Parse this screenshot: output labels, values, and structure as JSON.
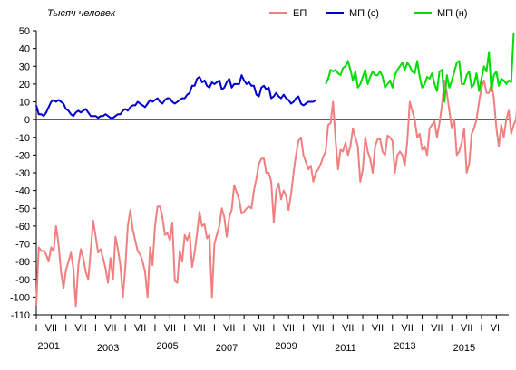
{
  "chart_data": {
    "type": "line",
    "unit_label": "Тысяч человек",
    "ylim": [
      -110,
      50
    ],
    "yticks": [
      50,
      40,
      30,
      20,
      10,
      0,
      -10,
      -20,
      -30,
      -40,
      -50,
      -60,
      -70,
      -80,
      -90,
      -100,
      -110
    ],
    "x_start": "2001-01",
    "x_end": "2016-12",
    "month_tick_labels": [
      "I",
      "VII"
    ],
    "year_labels": [
      "2001",
      "2003",
      "2005",
      "2007",
      "2009",
      "2011",
      "2013",
      "2015"
    ],
    "series": [
      {
        "name": "ЕП",
        "color": "#f08080",
        "start": "2001-01",
        "values": [
          -105,
          -72,
          -74,
          -74,
          -76,
          -80,
          -72,
          -74,
          -60,
          -70,
          -86,
          -95,
          -85,
          -80,
          -75,
          -84,
          -105,
          -82,
          -73,
          -78,
          -86,
          -90,
          -74,
          -57,
          -66,
          -75,
          -73,
          -78,
          -84,
          -92,
          -78,
          -90,
          -66,
          -73,
          -82,
          -100,
          -83,
          -60,
          -51,
          -62,
          -68,
          -74,
          -76,
          -80,
          -86,
          -100,
          -72,
          -82,
          -60,
          -49,
          -49,
          -55,
          -65,
          -64,
          -68,
          -58,
          -91,
          -92,
          -74,
          -80,
          -65,
          -68,
          -64,
          -83,
          -75,
          -64,
          -52,
          -60,
          -59,
          -67,
          -65,
          -100,
          -70,
          -65,
          -60,
          -50,
          -55,
          -66,
          -55,
          -51,
          -37,
          -41,
          -45,
          -53,
          -52,
          -50,
          -49,
          -50,
          -40,
          -33,
          -25,
          -22,
          -22,
          -30,
          -30,
          -35,
          -58,
          -40,
          -36,
          -45,
          -40,
          -43,
          -51,
          -42,
          -30,
          -20,
          -12,
          -10,
          -20,
          -24,
          -28,
          -26,
          -35,
          -30,
          -28,
          -25,
          -21,
          -18,
          -3,
          -2,
          10,
          -12,
          -28,
          -17,
          -18,
          -13,
          -20,
          -15,
          -5,
          -10,
          -15,
          -35,
          -28,
          -10,
          -18,
          -22,
          -30,
          -15,
          -11,
          -11,
          -18,
          -20,
          -9,
          -10,
          -12,
          -30,
          -20,
          -18,
          -20,
          -26,
          -12,
          10,
          5,
          0,
          -10,
          -8,
          -17,
          -15,
          -20,
          -5,
          -3,
          -1,
          -10,
          -2,
          8,
          22,
          15,
          5,
          -5,
          0,
          -20,
          -18,
          -13,
          -5,
          -30,
          -25,
          -8,
          -5,
          0,
          10,
          18,
          22,
          15,
          15,
          20,
          12,
          -5,
          -15,
          -3,
          -10,
          0,
          5,
          -8,
          -3,
          0,
          20,
          8,
          -4,
          -15,
          -25,
          -20,
          -20,
          -5,
          5,
          15,
          25,
          20,
          -5,
          -22,
          -24,
          -14,
          -5,
          -3,
          0,
          -18,
          -27,
          -10,
          15,
          20,
          10,
          -25,
          -12,
          -2,
          0,
          -1,
          -10,
          0,
          5,
          10,
          20,
          22,
          25,
          -5,
          -15,
          -12
        ]
      },
      {
        "name": "МП  (с)",
        "color": "#0000cc",
        "start": "2001-01",
        "values": [
          8,
          3,
          3,
          2,
          4,
          7,
          10,
          11,
          10,
          11,
          10,
          9,
          6,
          5,
          3,
          2,
          4,
          5,
          4,
          5,
          6,
          4,
          2,
          2,
          2,
          1,
          2,
          2,
          3,
          2,
          1,
          1,
          2,
          3,
          3,
          5,
          6,
          5,
          7,
          8,
          8,
          10,
          9,
          8,
          7,
          9,
          11,
          10,
          11,
          12,
          10,
          9,
          11,
          12,
          12,
          10,
          9,
          10,
          11,
          12,
          12,
          14,
          15,
          19,
          19,
          23,
          24,
          21,
          22,
          19,
          18,
          21,
          20,
          21,
          22,
          17,
          18,
          21,
          23,
          18,
          20,
          20,
          20,
          25,
          22,
          20,
          21,
          19,
          19,
          14,
          13,
          18,
          19,
          17,
          18,
          12,
          13,
          15,
          13,
          12,
          14,
          12,
          11,
          9,
          10,
          12,
          13,
          9,
          8,
          9,
          10,
          10,
          10,
          11
        ]
      },
      {
        "name": "МП  (н)",
        "color": "#00dd00",
        "start": "2010-10",
        "values": [
          20,
          23,
          28,
          27,
          28,
          26,
          25,
          29,
          30,
          33,
          28,
          22,
          27,
          18,
          20,
          24,
          28,
          20,
          24,
          27,
          25,
          25,
          27,
          24,
          18,
          20,
          22,
          18,
          25,
          28,
          30,
          32,
          28,
          32,
          30,
          27,
          26,
          33,
          24,
          18,
          20,
          24,
          23,
          26,
          20,
          16,
          27,
          28,
          10,
          25,
          18,
          22,
          27,
          32,
          33,
          20,
          20,
          25,
          27,
          18,
          20,
          26,
          16,
          23,
          30,
          27,
          38,
          16,
          25,
          27,
          19,
          23,
          22,
          20,
          22,
          21,
          49
        ]
      }
    ],
    "legend": {
      "placement": "top-right"
    },
    "grid": false
  }
}
